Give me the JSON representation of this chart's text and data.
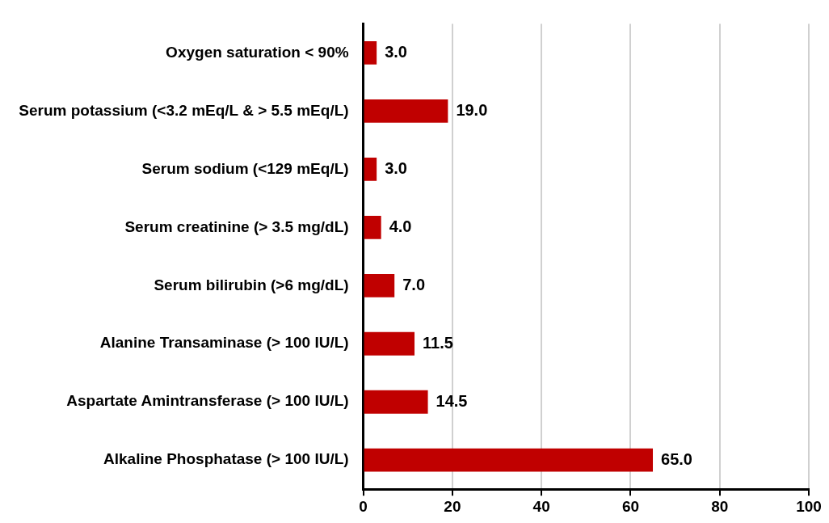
{
  "chart_data": {
    "type": "bar",
    "orientation": "horizontal",
    "categories": [
      "Oxygen saturation < 90%",
      "Serum potassium (<3.2 mEq/L & > 5.5 mEq/L)",
      "Serum sodium (<129 mEq/L)",
      "Serum creatinine (> 3.5 mg/dL)",
      "Serum bilirubin (>6 mg/dL)",
      "Alanine Transaminase (> 100 IU/L)",
      "Aspartate Amintransferase (> 100 IU/L)",
      "Alkaline Phosphatase (> 100 IU/L)"
    ],
    "values": [
      3.0,
      19.0,
      3.0,
      4.0,
      7.0,
      11.5,
      14.5,
      65.0
    ],
    "value_labels": [
      "3.0",
      "19.0",
      "3.0",
      "4.0",
      "7.0",
      "11.5",
      "14.5",
      "65.0"
    ],
    "color": "#c00000",
    "xlim": [
      0,
      100
    ],
    "xticks": [
      0,
      20,
      40,
      60,
      80,
      100
    ],
    "grid": "x",
    "legend": false
  }
}
